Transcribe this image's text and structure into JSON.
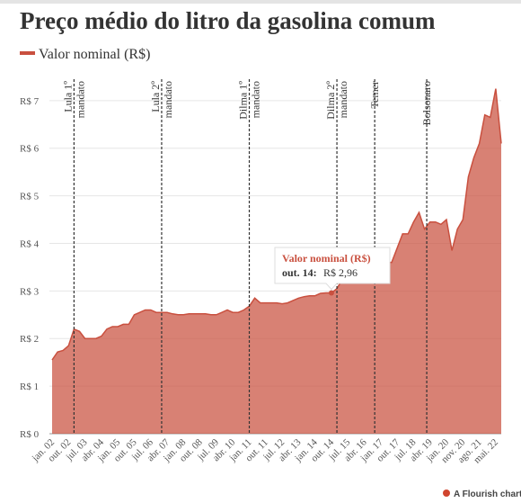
{
  "chart_data": {
    "type": "area",
    "title": "Preço médio do litro da gasolina comum",
    "categories": [
      "jan. 02",
      null,
      null,
      "out. 02",
      null,
      null,
      "jul. 03",
      null,
      null,
      "abr. 04",
      null,
      null,
      "jan. 05",
      null,
      null,
      "out. 05",
      null,
      null,
      "jul. 06",
      null,
      null,
      "abr. 07",
      null,
      null,
      "jan. 08",
      null,
      null,
      "out. 08",
      null,
      null,
      "jul. 09",
      null,
      null,
      "abr. 10",
      null,
      null,
      "jan. 11",
      null,
      null,
      "out. 11",
      null,
      null,
      "jul. 12",
      null,
      null,
      "abr. 13",
      null,
      null,
      "jan. 14",
      null,
      null,
      "out. 14",
      null,
      null,
      "jul. 15",
      null,
      null,
      "abr. 16",
      null,
      null,
      "jan. 17",
      null,
      null,
      "out. 17",
      null,
      null,
      "jul. 18",
      null,
      null,
      "abr. 19",
      null,
      null,
      "jan. 20",
      null,
      null,
      "nov. 20",
      null,
      null,
      "ago. 21",
      null,
      null,
      "mai. 22",
      null
    ],
    "series": [
      {
        "name": "Valor nominal (R$)",
        "color": "#c9503f",
        "values": [
          1.55,
          1.72,
          1.75,
          1.85,
          2.2,
          2.15,
          2.0,
          2.0,
          2.0,
          2.05,
          2.2,
          2.25,
          2.25,
          2.3,
          2.3,
          2.5,
          2.55,
          2.6,
          2.6,
          2.55,
          2.55,
          2.55,
          2.52,
          2.5,
          2.5,
          2.52,
          2.52,
          2.52,
          2.52,
          2.5,
          2.5,
          2.55,
          2.6,
          2.55,
          2.55,
          2.6,
          2.68,
          2.85,
          2.75,
          2.75,
          2.75,
          2.75,
          2.73,
          2.75,
          2.8,
          2.85,
          2.88,
          2.9,
          2.9,
          2.95,
          2.96,
          2.96,
          3.05,
          3.25,
          3.3,
          3.45,
          3.7,
          3.65,
          3.6,
          3.65,
          3.75,
          3.6,
          3.6,
          3.9,
          4.2,
          4.2,
          4.45,
          4.65,
          4.3,
          4.45,
          4.45,
          4.4,
          4.5,
          3.85,
          4.3,
          4.5,
          5.4,
          5.8,
          6.1,
          6.7,
          6.65,
          7.25,
          6.1
        ]
      }
    ],
    "ylim": [
      0,
      7.3
    ],
    "yticks": [
      {
        "value": 0,
        "label": "R$ 0"
      },
      {
        "value": 1,
        "label": "R$ 1"
      },
      {
        "value": 2,
        "label": "R$ 2"
      },
      {
        "value": 3,
        "label": "R$ 3"
      },
      {
        "value": 4,
        "label": "R$ 4"
      },
      {
        "value": 5,
        "label": "R$ 5"
      },
      {
        "value": 6,
        "label": "R$ 6"
      },
      {
        "value": 7,
        "label": "R$ 7"
      }
    ],
    "grid": true,
    "annotations": [
      {
        "x": 4,
        "lines": [
          "Lula 1º",
          "mandato"
        ]
      },
      {
        "x": 20,
        "lines": [
          "Lula 2º",
          "mandato"
        ]
      },
      {
        "x": 36,
        "lines": [
          "Dilma 1º",
          "mandato"
        ]
      },
      {
        "x": 52,
        "lines": [
          "Dilma 2º",
          "mandato"
        ]
      },
      {
        "x": 58.9,
        "lines": [
          "Temer"
        ]
      },
      {
        "x": 68.4,
        "lines": [
          "Bolsonaro"
        ]
      }
    ],
    "tooltip": {
      "index": 51,
      "title": "Valor nominal (R$)",
      "label": "out. 14:",
      "value": "R$ 2,96"
    },
    "footer": "A Flourish chart"
  }
}
